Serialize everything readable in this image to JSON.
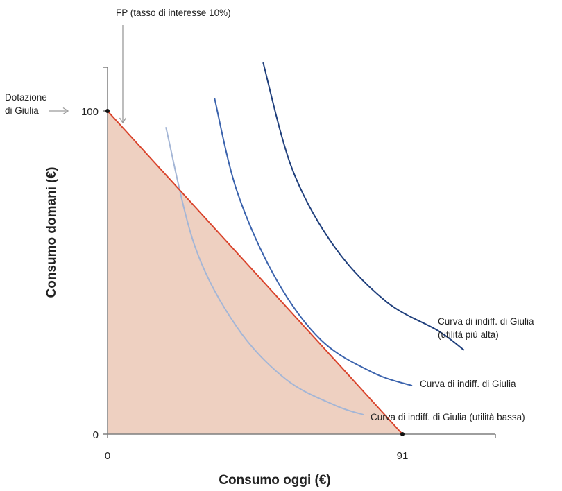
{
  "chart_data": {
    "type": "line",
    "title": "",
    "xlabel": "Consumo oggi (€)",
    "ylabel": "Consumo domani (€)",
    "xlim": [
      0,
      120
    ],
    "ylim": [
      0,
      113
    ],
    "x_ticks": [
      {
        "value": 0,
        "label": "0"
      },
      {
        "value": 91,
        "label": "91"
      }
    ],
    "y_ticks": [
      {
        "value": 0,
        "label": "0"
      },
      {
        "value": 100,
        "label": "100"
      }
    ],
    "feasible_frontier": {
      "name": "FP (tasso di interesse 10%)",
      "points": [
        [
          0,
          100
        ],
        [
          91,
          0
        ]
      ],
      "color": "#d9432b",
      "fill": "#eed0c1"
    },
    "series": [
      {
        "name": "Curva di indiff. di Giulia (utilità bassa)",
        "color": "#a4b6d6",
        "points": [
          [
            18,
            95
          ],
          [
            27,
            58
          ],
          [
            40,
            33
          ],
          [
            55,
            17
          ],
          [
            70,
            9
          ],
          [
            79,
            6
          ]
        ]
      },
      {
        "name": "Curva di indiff. di Giulia",
        "color": "#3b63ad",
        "points": [
          [
            33,
            104
          ],
          [
            40,
            75
          ],
          [
            52,
            48
          ],
          [
            66,
            29
          ],
          [
            82,
            19
          ],
          [
            94,
            15
          ]
        ]
      },
      {
        "name": "Curva di indiff. di Giulia (utilità più alta)",
        "color": "#1f3f7c",
        "points": [
          [
            48,
            115
          ],
          [
            57,
            82
          ],
          [
            70,
            58
          ],
          [
            86,
            41
          ],
          [
            102,
            32
          ],
          [
            110,
            26
          ]
        ]
      }
    ],
    "annotations": {
      "frontier": "FP (tasso di interesse 10%)",
      "endowment_line1": "Dotazione",
      "endowment_line2": "di Giulia",
      "ic_high_line1": "Curva di indiff. di Giulia",
      "ic_high_line2": "(utilità più alta)",
      "ic_mid": "Curva di indiff. di Giulia",
      "ic_low": "Curva di indiff. di Giulia (utilità bassa)"
    },
    "colors": {
      "axis": "#7f7f7f",
      "arrow": "#9a9a9a",
      "dot": "#111111"
    }
  }
}
